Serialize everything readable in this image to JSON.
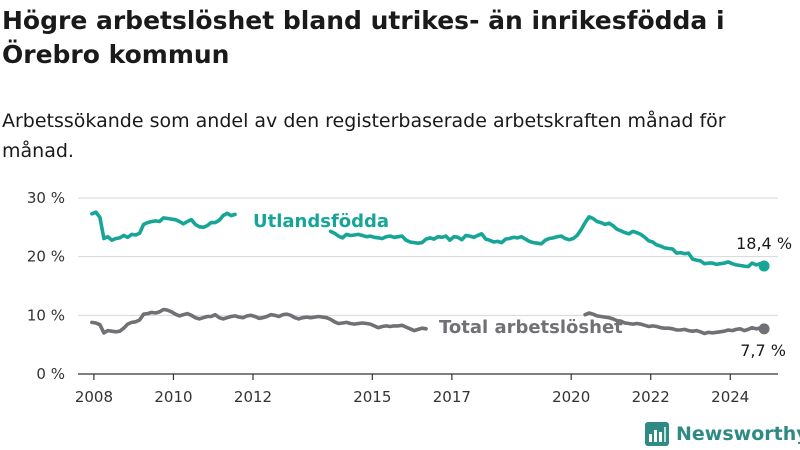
{
  "title": "Högre arbetslöshet bland utrikes- än inrikesfödda i Örebro kommun",
  "subtitle": "Arbetssökande som andel av den registerbaserade arbetskraften månad för månad.",
  "brand": {
    "name": "Newsworthy",
    "icon": "bar-chart-logo-icon"
  },
  "colors": {
    "utlandsfodda": "#16a596",
    "total": "#707075",
    "grid": "#d7d7d7",
    "axis": "#333333",
    "brand": "#2f8a85"
  },
  "chart_data": {
    "type": "line",
    "title": "Högre arbetslöshet bland utrikes- än inrikesfödda i Örebro kommun",
    "subtitle": "Arbetssökande som andel av den registerbaserade arbetskraften månad för månad.",
    "xlabel": "",
    "ylabel": "",
    "xlim": [
      2007.6,
      2025.2
    ],
    "ylim": [
      0,
      30
    ],
    "grid": true,
    "legend": "inline",
    "x_ticks": [
      {
        "value": 2008,
        "label": "2008"
      },
      {
        "value": 2010,
        "label": "2010"
      },
      {
        "value": 2012,
        "label": "2012"
      },
      {
        "value": 2015,
        "label": "2015"
      },
      {
        "value": 2017,
        "label": "2017"
      },
      {
        "value": 2020,
        "label": "2020"
      },
      {
        "value": 2022,
        "label": "2022"
      },
      {
        "value": 2024,
        "label": "2024"
      }
    ],
    "y_ticks": [
      {
        "value": 0,
        "label": "0 %"
      },
      {
        "value": 10,
        "label": "10 %"
      },
      {
        "value": 20,
        "label": "20 %"
      },
      {
        "value": 30,
        "label": "30 %"
      }
    ],
    "series": [
      {
        "key": "utlandsfodda",
        "name": "Utlandsfödda",
        "end_label": "18,4 %",
        "points": [
          [
            2007.95,
            27.3
          ],
          [
            2008.05,
            27.6
          ],
          [
            2008.15,
            26.7
          ],
          [
            2008.25,
            23.1
          ],
          [
            2008.35,
            23.4
          ],
          [
            2008.45,
            22.8
          ],
          [
            2008.55,
            23.1
          ],
          [
            2008.65,
            23.2
          ],
          [
            2008.75,
            23.6
          ],
          [
            2008.85,
            23.3
          ],
          [
            2008.95,
            23.8
          ],
          [
            2009.05,
            23.7
          ],
          [
            2009.15,
            24.0
          ],
          [
            2009.25,
            25.5
          ],
          [
            2009.35,
            25.8
          ],
          [
            2009.45,
            26.0
          ],
          [
            2009.55,
            26.1
          ],
          [
            2009.65,
            26.0
          ],
          [
            2009.75,
            26.6
          ],
          [
            2009.85,
            26.5
          ],
          [
            2009.95,
            26.4
          ],
          [
            2010.05,
            26.3
          ],
          [
            2010.15,
            26.0
          ],
          [
            2010.25,
            25.6
          ],
          [
            2010.35,
            26.0
          ],
          [
            2010.45,
            26.3
          ],
          [
            2010.55,
            25.5
          ],
          [
            2010.65,
            25.1
          ],
          [
            2010.75,
            25.0
          ],
          [
            2010.85,
            25.3
          ],
          [
            2010.95,
            25.8
          ],
          [
            2011.05,
            25.8
          ],
          [
            2011.15,
            26.2
          ],
          [
            2011.25,
            27.0
          ],
          [
            2011.35,
            27.4
          ],
          [
            2011.45,
            27.0
          ],
          [
            2011.55,
            27.2
          ],
          null,
          [
            2013.95,
            24.3
          ],
          [
            2014.05,
            24.0
          ],
          [
            2014.15,
            23.5
          ],
          [
            2014.25,
            23.2
          ],
          [
            2014.35,
            23.8
          ],
          [
            2014.45,
            23.6
          ],
          [
            2014.55,
            23.7
          ],
          [
            2014.65,
            23.8
          ],
          [
            2014.75,
            23.6
          ],
          [
            2014.85,
            23.4
          ],
          [
            2014.95,
            23.5
          ],
          [
            2015.05,
            23.3
          ],
          [
            2015.15,
            23.2
          ],
          [
            2015.25,
            23.1
          ],
          [
            2015.35,
            23.4
          ],
          [
            2015.45,
            23.5
          ],
          [
            2015.55,
            23.3
          ],
          [
            2015.65,
            23.4
          ],
          [
            2015.75,
            23.5
          ],
          [
            2015.85,
            22.8
          ],
          [
            2015.95,
            22.5
          ],
          [
            2016.05,
            22.4
          ],
          [
            2016.15,
            22.3
          ],
          [
            2016.25,
            22.4
          ],
          [
            2016.35,
            23.0
          ],
          [
            2016.45,
            23.2
          ],
          [
            2016.55,
            23.0
          ],
          [
            2016.65,
            23.4
          ],
          [
            2016.75,
            23.3
          ],
          [
            2016.85,
            23.5
          ],
          [
            2016.95,
            22.8
          ],
          [
            2017.05,
            23.4
          ],
          [
            2017.15,
            23.3
          ],
          [
            2017.25,
            22.9
          ],
          [
            2017.35,
            23.6
          ],
          [
            2017.45,
            23.5
          ],
          [
            2017.55,
            23.3
          ],
          [
            2017.65,
            23.6
          ],
          [
            2017.75,
            23.9
          ],
          [
            2017.85,
            23.0
          ],
          [
            2017.95,
            22.8
          ],
          [
            2018.05,
            22.5
          ],
          [
            2018.15,
            22.6
          ],
          [
            2018.25,
            22.4
          ],
          [
            2018.35,
            23.0
          ],
          [
            2018.45,
            23.1
          ],
          [
            2018.55,
            23.3
          ],
          [
            2018.65,
            23.2
          ],
          [
            2018.75,
            23.4
          ],
          [
            2018.85,
            23.0
          ],
          [
            2018.95,
            22.6
          ],
          [
            2019.05,
            22.4
          ],
          [
            2019.15,
            22.3
          ],
          [
            2019.25,
            22.2
          ],
          [
            2019.35,
            22.8
          ],
          [
            2019.45,
            23.1
          ],
          [
            2019.55,
            23.2
          ],
          [
            2019.65,
            23.4
          ],
          [
            2019.75,
            23.5
          ],
          [
            2019.85,
            23.1
          ],
          [
            2019.95,
            22.9
          ],
          [
            2020.05,
            23.1
          ],
          [
            2020.15,
            23.6
          ],
          [
            2020.25,
            24.6
          ],
          [
            2020.35,
            25.8
          ],
          [
            2020.45,
            26.8
          ],
          [
            2020.55,
            26.5
          ],
          [
            2020.65,
            26.0
          ],
          [
            2020.75,
            25.8
          ],
          [
            2020.85,
            25.5
          ],
          [
            2020.95,
            25.7
          ],
          [
            2021.05,
            25.3
          ],
          [
            2021.15,
            24.7
          ],
          [
            2021.25,
            24.4
          ],
          [
            2021.35,
            24.1
          ],
          [
            2021.45,
            23.9
          ],
          [
            2021.55,
            24.3
          ],
          [
            2021.65,
            24.1
          ],
          [
            2021.75,
            23.8
          ],
          [
            2021.85,
            23.3
          ],
          [
            2021.95,
            22.7
          ],
          [
            2022.05,
            22.5
          ],
          [
            2022.15,
            22.0
          ],
          [
            2022.25,
            21.8
          ],
          [
            2022.35,
            21.5
          ],
          [
            2022.45,
            21.4
          ],
          [
            2022.55,
            21.3
          ],
          [
            2022.65,
            20.6
          ],
          [
            2022.75,
            20.7
          ],
          [
            2022.85,
            20.5
          ],
          [
            2022.95,
            20.6
          ],
          [
            2023.05,
            19.6
          ],
          [
            2023.15,
            19.4
          ],
          [
            2023.25,
            19.3
          ],
          [
            2023.35,
            18.8
          ],
          [
            2023.45,
            18.9
          ],
          [
            2023.55,
            18.9
          ],
          [
            2023.65,
            18.7
          ],
          [
            2023.75,
            18.8
          ],
          [
            2023.85,
            18.9
          ],
          [
            2023.95,
            19.1
          ],
          [
            2024.05,
            18.8
          ],
          [
            2024.15,
            18.6
          ],
          [
            2024.25,
            18.5
          ],
          [
            2024.35,
            18.4
          ],
          [
            2024.45,
            18.3
          ],
          [
            2024.55,
            18.9
          ],
          [
            2024.65,
            18.6
          ],
          [
            2024.75,
            18.8
          ],
          [
            2024.85,
            18.4
          ]
        ]
      },
      {
        "key": "total",
        "name": "Total arbetslöshet",
        "end_label": "7,7 %",
        "points": [
          [
            2007.95,
            8.8
          ],
          [
            2008.05,
            8.7
          ],
          [
            2008.15,
            8.4
          ],
          [
            2008.25,
            7.0
          ],
          [
            2008.35,
            7.4
          ],
          [
            2008.45,
            7.3
          ],
          [
            2008.55,
            7.2
          ],
          [
            2008.65,
            7.3
          ],
          [
            2008.75,
            7.8
          ],
          [
            2008.85,
            8.5
          ],
          [
            2008.95,
            8.8
          ],
          [
            2009.05,
            8.9
          ],
          [
            2009.15,
            9.2
          ],
          [
            2009.25,
            10.2
          ],
          [
            2009.35,
            10.3
          ],
          [
            2009.45,
            10.5
          ],
          [
            2009.55,
            10.4
          ],
          [
            2009.65,
            10.6
          ],
          [
            2009.75,
            11.0
          ],
          [
            2009.85,
            10.9
          ],
          [
            2009.95,
            10.6
          ],
          [
            2010.05,
            10.2
          ],
          [
            2010.15,
            9.9
          ],
          [
            2010.25,
            10.1
          ],
          [
            2010.35,
            10.3
          ],
          [
            2010.45,
            10.0
          ],
          [
            2010.55,
            9.6
          ],
          [
            2010.65,
            9.4
          ],
          [
            2010.75,
            9.6
          ],
          [
            2010.85,
            9.8
          ],
          [
            2010.95,
            9.8
          ],
          [
            2011.05,
            10.1
          ],
          [
            2011.15,
            9.6
          ],
          [
            2011.25,
            9.4
          ],
          [
            2011.35,
            9.6
          ],
          [
            2011.45,
            9.8
          ],
          [
            2011.55,
            9.9
          ],
          [
            2011.65,
            9.7
          ],
          [
            2011.75,
            9.6
          ],
          [
            2011.85,
            9.9
          ],
          [
            2011.95,
            10.0
          ],
          [
            2012.05,
            9.8
          ],
          [
            2012.15,
            9.5
          ],
          [
            2012.25,
            9.6
          ],
          [
            2012.35,
            9.8
          ],
          [
            2012.45,
            10.1
          ],
          [
            2012.55,
            10.0
          ],
          [
            2012.65,
            9.8
          ],
          [
            2012.75,
            10.1
          ],
          [
            2012.85,
            10.2
          ],
          [
            2012.95,
            10.0
          ],
          [
            2013.05,
            9.6
          ],
          [
            2013.15,
            9.4
          ],
          [
            2013.25,
            9.6
          ],
          [
            2013.35,
            9.7
          ],
          [
            2013.45,
            9.6
          ],
          [
            2013.55,
            9.7
          ],
          [
            2013.65,
            9.8
          ],
          [
            2013.75,
            9.7
          ],
          [
            2013.85,
            9.6
          ],
          [
            2013.95,
            9.3
          ],
          [
            2014.05,
            8.9
          ],
          [
            2014.15,
            8.6
          ],
          [
            2014.25,
            8.7
          ],
          [
            2014.35,
            8.8
          ],
          [
            2014.45,
            8.6
          ],
          [
            2014.55,
            8.5
          ],
          [
            2014.65,
            8.6
          ],
          [
            2014.75,
            8.7
          ],
          [
            2014.85,
            8.6
          ],
          [
            2014.95,
            8.5
          ],
          [
            2015.05,
            8.2
          ],
          [
            2015.15,
            7.9
          ],
          [
            2015.25,
            8.1
          ],
          [
            2015.35,
            8.2
          ],
          [
            2015.45,
            8.1
          ],
          [
            2015.55,
            8.2
          ],
          [
            2015.65,
            8.2
          ],
          [
            2015.75,
            8.3
          ],
          [
            2015.85,
            8.0
          ],
          [
            2015.95,
            7.7
          ],
          [
            2016.05,
            7.4
          ],
          [
            2016.15,
            7.6
          ],
          [
            2016.25,
            7.8
          ],
          [
            2016.35,
            7.7
          ],
          null,
          [
            2020.35,
            10.1
          ],
          [
            2020.45,
            10.4
          ],
          [
            2020.55,
            10.2
          ],
          [
            2020.65,
            9.9
          ],
          [
            2020.75,
            9.8
          ],
          [
            2020.85,
            9.7
          ],
          [
            2020.95,
            9.6
          ],
          [
            2021.05,
            9.4
          ],
          [
            2021.15,
            9.1
          ],
          [
            2021.25,
            9.0
          ],
          [
            2021.35,
            8.7
          ],
          [
            2021.45,
            8.6
          ],
          [
            2021.55,
            8.5
          ],
          [
            2021.65,
            8.6
          ],
          [
            2021.75,
            8.5
          ],
          [
            2021.85,
            8.3
          ],
          [
            2021.95,
            8.1
          ],
          [
            2022.05,
            8.2
          ],
          [
            2022.15,
            8.1
          ],
          [
            2022.25,
            7.9
          ],
          [
            2022.35,
            7.8
          ],
          [
            2022.45,
            7.8
          ],
          [
            2022.55,
            7.7
          ],
          [
            2022.65,
            7.5
          ],
          [
            2022.75,
            7.5
          ],
          [
            2022.85,
            7.6
          ],
          [
            2022.95,
            7.4
          ],
          [
            2023.05,
            7.3
          ],
          [
            2023.15,
            7.4
          ],
          [
            2023.25,
            7.2
          ],
          [
            2023.35,
            6.9
          ],
          [
            2023.45,
            7.1
          ],
          [
            2023.55,
            7.0
          ],
          [
            2023.65,
            7.1
          ],
          [
            2023.75,
            7.2
          ],
          [
            2023.85,
            7.3
          ],
          [
            2023.95,
            7.5
          ],
          [
            2024.05,
            7.4
          ],
          [
            2024.15,
            7.6
          ],
          [
            2024.25,
            7.7
          ],
          [
            2024.35,
            7.4
          ],
          [
            2024.45,
            7.6
          ],
          [
            2024.55,
            7.9
          ],
          [
            2024.65,
            7.7
          ],
          [
            2024.75,
            7.8
          ],
          [
            2024.85,
            7.7
          ]
        ]
      }
    ]
  }
}
